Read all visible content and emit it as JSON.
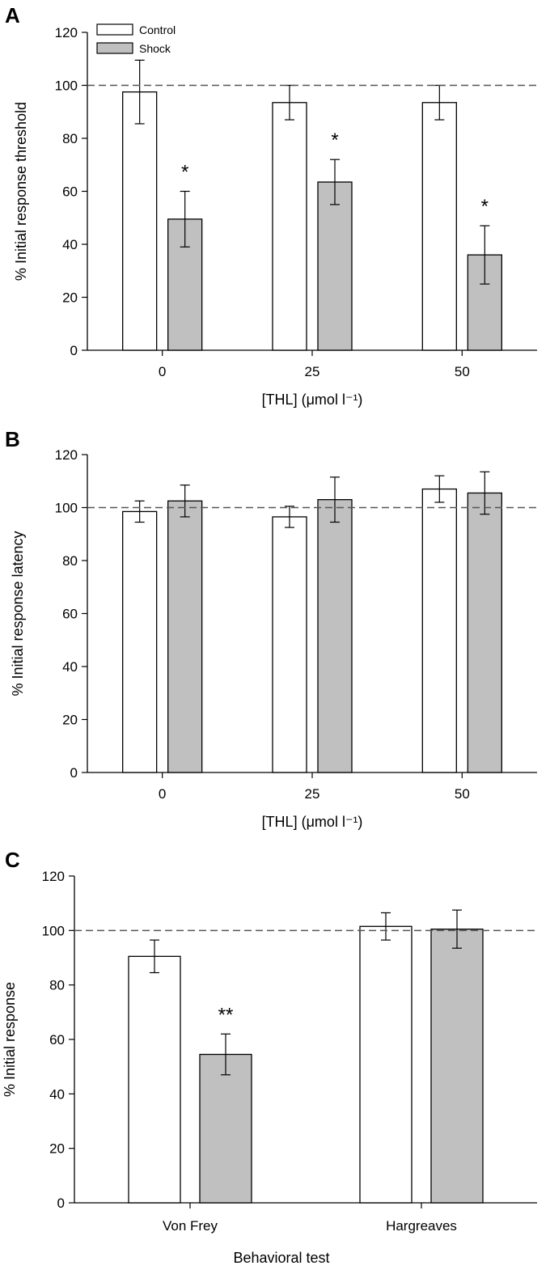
{
  "colors": {
    "control_fill": "#ffffff",
    "shock_fill": "#c0c0c0",
    "stroke": "#000000",
    "reference_line": "#555555"
  },
  "chart_data": [
    {
      "panel": "A",
      "type": "bar",
      "title": "",
      "xlabel": "[THL] (μmol l⁻¹)",
      "ylabel": "% Initial response threshold",
      "categories": [
        "0",
        "25",
        "50"
      ],
      "ylim": [
        0,
        120
      ],
      "yticks": [
        0,
        20,
        40,
        60,
        80,
        100,
        120
      ],
      "reference_line": 100,
      "grid": false,
      "legend": {
        "placement": "top-left",
        "entries": [
          "Control",
          "Shock"
        ]
      },
      "series": [
        {
          "name": "Control",
          "values": [
            97.5,
            93.5,
            93.5
          ],
          "errors": [
            12,
            6.5,
            6.5
          ]
        },
        {
          "name": "Shock",
          "values": [
            49.5,
            63.5,
            36
          ],
          "errors": [
            10.5,
            8.5,
            11
          ]
        }
      ],
      "annotations": [
        {
          "text": "*",
          "category": 0,
          "series": 1
        },
        {
          "text": "*",
          "category": 1,
          "series": 1
        },
        {
          "text": "*",
          "category": 2,
          "series": 1
        }
      ]
    },
    {
      "panel": "B",
      "type": "bar",
      "title": "",
      "xlabel": "[THL] (μmol l⁻¹)",
      "ylabel": "% Initial response latency",
      "categories": [
        "0",
        "25",
        "50"
      ],
      "ylim": [
        0,
        120
      ],
      "yticks": [
        0,
        20,
        40,
        60,
        80,
        100,
        120
      ],
      "reference_line": 100,
      "grid": false,
      "series": [
        {
          "name": "Control",
          "values": [
            98.5,
            96.5,
            107
          ],
          "errors": [
            4,
            4,
            5
          ]
        },
        {
          "name": "Shock",
          "values": [
            102.5,
            103,
            105.5
          ],
          "errors": [
            6,
            8.5,
            8
          ]
        }
      ],
      "annotations": []
    },
    {
      "panel": "C",
      "type": "bar",
      "title": "",
      "xlabel": "Behavioral test",
      "ylabel": "% Initial response",
      "categories": [
        "Von Frey",
        "Hargreaves"
      ],
      "ylim": [
        0,
        120
      ],
      "yticks": [
        0,
        20,
        40,
        60,
        80,
        100,
        120
      ],
      "reference_line": 100,
      "grid": false,
      "series": [
        {
          "name": "Control",
          "values": [
            90.5,
            101.5
          ],
          "errors": [
            6,
            5
          ]
        },
        {
          "name": "Shock",
          "values": [
            54.5,
            100.5
          ],
          "errors": [
            7.5,
            7
          ]
        }
      ],
      "annotations": [
        {
          "text": "**",
          "category": 0,
          "series": 1
        }
      ]
    }
  ]
}
